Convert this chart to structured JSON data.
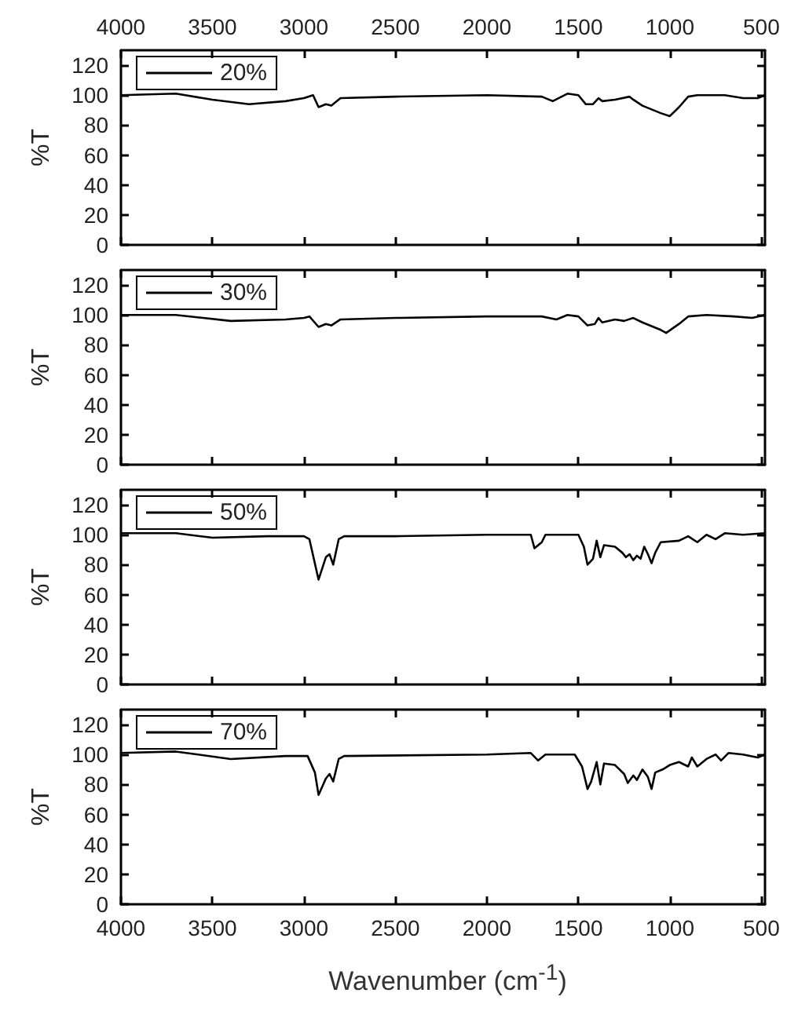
{
  "chart_data": [
    {
      "type": "line",
      "ylabel": "%T",
      "xlim": [
        4000,
        480
      ],
      "xticks": [
        4000,
        3500,
        3000,
        2500,
        2000,
        1500,
        1000,
        500
      ],
      "tick_labels": "y",
      "x2lim": [
        4000,
        480
      ],
      "x2ticks": [
        4000,
        3500,
        3000,
        2500,
        2000,
        1500,
        1000,
        500
      ],
      "ylim": [
        0,
        130
      ],
      "yticks": [
        0,
        20,
        40,
        60,
        80,
        100,
        120
      ],
      "legend": "top left",
      "series": [
        {
          "name": "20%",
          "color": "#000000",
          "x": [
            4000,
            3700,
            3500,
            3300,
            3100,
            3000,
            2950,
            2920,
            2880,
            2850,
            2800,
            2500,
            2000,
            1700,
            1640,
            1560,
            1500,
            1460,
            1420,
            1390,
            1370,
            1300,
            1220,
            1200,
            1150,
            1050,
            1000,
            950,
            900,
            850,
            700,
            600,
            520,
            480
          ],
          "values": [
            100,
            101,
            97,
            94,
            96,
            98,
            100,
            92,
            94,
            93,
            98,
            99,
            100,
            99,
            96,
            101,
            100,
            94,
            94,
            98,
            96,
            97,
            99,
            97,
            93,
            88,
            86,
            92,
            99,
            100,
            100,
            98,
            98,
            100
          ]
        }
      ]
    },
    {
      "type": "line",
      "ylabel": "%T",
      "xlim": [
        4000,
        480
      ],
      "xticks": [
        4000,
        3500,
        3000,
        2500,
        2000,
        1500,
        1000,
        500
      ],
      "ylim": [
        0,
        130
      ],
      "yticks": [
        0,
        20,
        40,
        60,
        80,
        100,
        120
      ],
      "legend": "top left",
      "tick_labels": "y",
      "series": [
        {
          "name": "30%",
          "color": "#000000",
          "x": [
            4000,
            3700,
            3400,
            3100,
            3000,
            2970,
            2920,
            2880,
            2850,
            2800,
            2500,
            2000,
            1700,
            1620,
            1560,
            1500,
            1450,
            1410,
            1390,
            1370,
            1300,
            1250,
            1200,
            1150,
            1050,
            1020,
            950,
            900,
            800,
            650,
            550,
            480
          ],
          "values": [
            100,
            100,
            96,
            97,
            98,
            99,
            92,
            94,
            93,
            97,
            98,
            99,
            99,
            97,
            100,
            99,
            93,
            94,
            98,
            95,
            97,
            96,
            98,
            95,
            90,
            88,
            94,
            99,
            100,
            99,
            98,
            100
          ]
        }
      ]
    },
    {
      "type": "line",
      "ylabel": "%T",
      "xlim": [
        4000,
        480
      ],
      "xticks": [
        4000,
        3500,
        3000,
        2500,
        2000,
        1500,
        1000,
        500
      ],
      "ylim": [
        0,
        130
      ],
      "yticks": [
        0,
        20,
        40,
        60,
        80,
        100,
        120
      ],
      "legend": "top left",
      "tick_labels": "y",
      "series": [
        {
          "name": "50%",
          "color": "#000000",
          "x": [
            4000,
            3700,
            3500,
            3200,
            3000,
            2970,
            2920,
            2880,
            2860,
            2840,
            2810,
            2780,
            2500,
            2000,
            1760,
            1740,
            1700,
            1680,
            1500,
            1470,
            1450,
            1420,
            1400,
            1380,
            1360,
            1300,
            1260,
            1240,
            1220,
            1200,
            1180,
            1160,
            1140,
            1120,
            1100,
            1080,
            1050,
            950,
            900,
            850,
            800,
            750,
            700,
            600,
            480
          ],
          "values": [
            101,
            101,
            98,
            99,
            99,
            97,
            70,
            85,
            87,
            80,
            97,
            99,
            99,
            100,
            100,
            91,
            95,
            100,
            100,
            92,
            80,
            84,
            96,
            85,
            93,
            92,
            88,
            85,
            87,
            83,
            86,
            84,
            92,
            87,
            81,
            88,
            95,
            96,
            99,
            95,
            100,
            97,
            101,
            100,
            101
          ]
        }
      ]
    },
    {
      "type": "line",
      "ylabel": "%T",
      "xlabel": "Wavenumber (cm$^{-1}$)",
      "xlim": [
        4000,
        480
      ],
      "xticks": [
        4000,
        3500,
        3000,
        2500,
        2000,
        1500,
        1000,
        500
      ],
      "ylim": [
        0,
        130
      ],
      "yticks": [
        0,
        20,
        40,
        60,
        80,
        100,
        120
      ],
      "legend": "top left",
      "series": [
        {
          "name": "70%",
          "color": "#000000",
          "x": [
            4000,
            3700,
            3400,
            3100,
            2980,
            2940,
            2920,
            2880,
            2860,
            2840,
            2810,
            2780,
            2000,
            1760,
            1720,
            1680,
            1520,
            1480,
            1450,
            1430,
            1400,
            1380,
            1360,
            1300,
            1250,
            1230,
            1200,
            1180,
            1150,
            1120,
            1100,
            1080,
            1040,
            1000,
            950,
            900,
            880,
            850,
            800,
            750,
            720,
            680,
            600,
            520,
            480
          ],
          "values": [
            101,
            102,
            97,
            99,
            99,
            88,
            73,
            84,
            87,
            82,
            97,
            99,
            100,
            101,
            96,
            100,
            100,
            92,
            77,
            82,
            95,
            80,
            94,
            93,
            87,
            81,
            86,
            83,
            90,
            85,
            77,
            88,
            90,
            93,
            95,
            92,
            98,
            92,
            97,
            100,
            96,
            101,
            100,
            98,
            100
          ]
        }
      ]
    }
  ]
}
